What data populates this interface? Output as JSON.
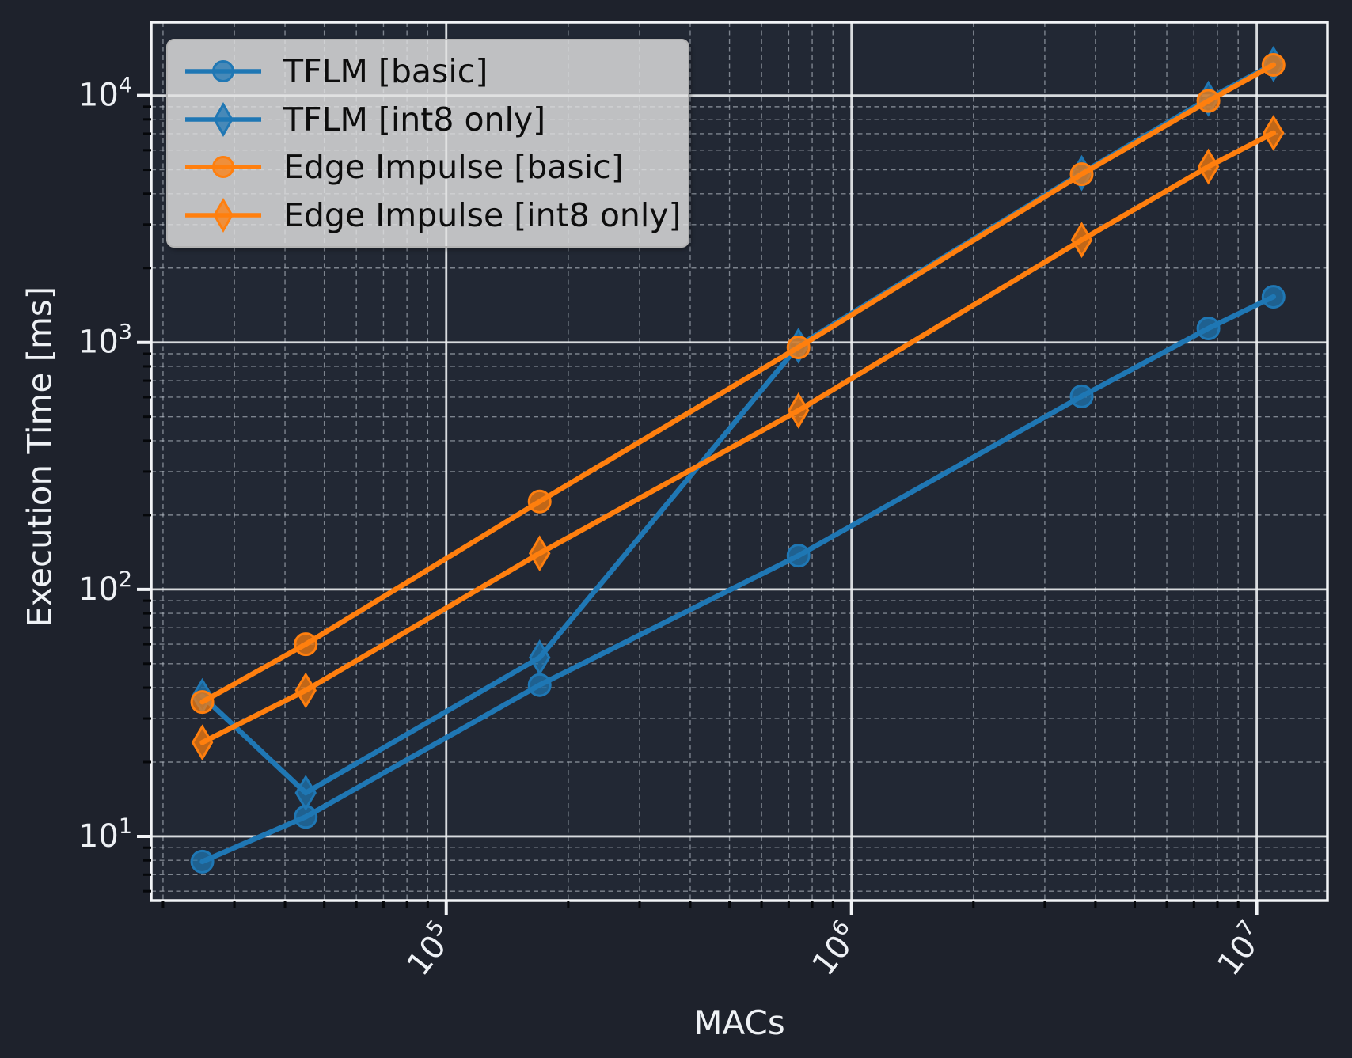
{
  "figure": {
    "background": "#1e222c",
    "axes_background": "#222834",
    "spine_color": "#f2f4f7",
    "grid_major_color": "rgba(236,238,241,0.9)",
    "grid_minor_color": "rgba(201,207,216,0.55)",
    "tick_major_color": "#f2f4f7",
    "tick_minor_color": "#05070a",
    "text_color": "#eef1f5",
    "legend": {
      "background": "rgba(226,226,226,0.82)",
      "border_color": "#b4b4b4",
      "text_color": "#0d0d0d"
    }
  },
  "chart_data": {
    "type": "line",
    "title": "",
    "xlabel": "MACs",
    "ylabel": "Execution Time [ms]",
    "xscale": "log",
    "yscale": "log",
    "xlim": [
      18700,
      14950000
    ],
    "ylim": [
      5.5,
      19800
    ],
    "x_tick_exponents": [
      5,
      6,
      7
    ],
    "y_tick_exponents": [
      1,
      2,
      3,
      4
    ],
    "grid": {
      "major": "solid",
      "minor": "dashed"
    },
    "legend_position": "upper left",
    "x": [
      25000,
      45000,
      170000,
      740000,
      3700000,
      7600000,
      11000000
    ],
    "series": [
      {
        "name": "TFLM [basic]",
        "color": "#1f77b4",
        "marker": "circle",
        "values": [
          7.9,
          12,
          41,
          137,
          605,
          1140,
          1530
        ]
      },
      {
        "name": "TFLM [int8 only]",
        "color": "#1f77b4",
        "marker": "diamond",
        "values": [
          37,
          15,
          53,
          970,
          4850,
          9700,
          13400
        ]
      },
      {
        "name": "Edge Impulse [basic]",
        "color": "#ff7f0e",
        "marker": "circle",
        "values": [
          35,
          60,
          227,
          955,
          4800,
          9500,
          13300
        ]
      },
      {
        "name": "Edge Impulse [int8 only]",
        "color": "#ff7f0e",
        "marker": "diamond",
        "values": [
          24,
          39,
          140,
          530,
          2600,
          5150,
          7050
        ]
      }
    ]
  }
}
